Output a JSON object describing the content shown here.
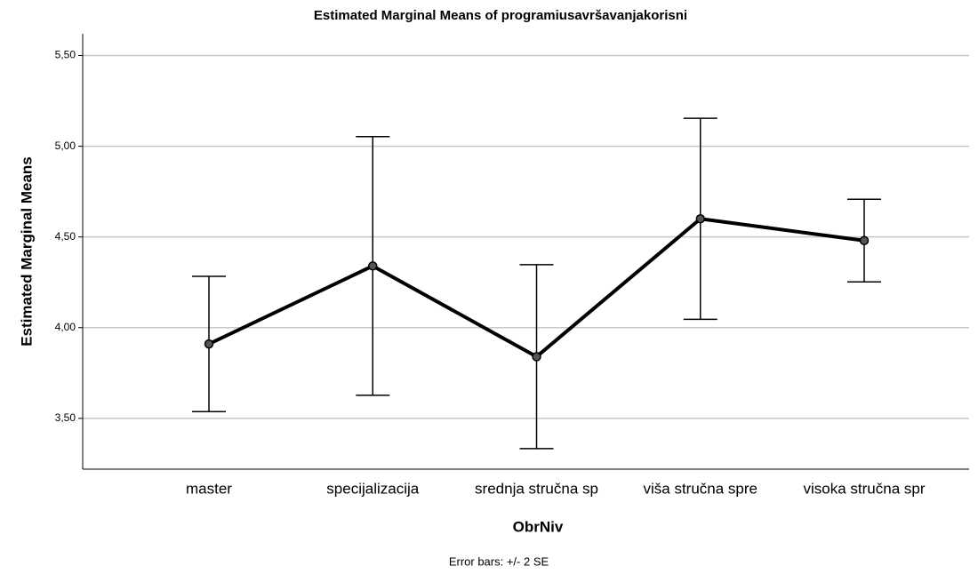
{
  "chart_data": {
    "type": "line",
    "title": "Estimated Marginal Means of programiusavršavanjakorisni",
    "xlabel": "ObrNiv",
    "ylabel": "Estimated Marginal Means",
    "footnote": "Error bars: +/- 2 SE",
    "categories": [
      "master",
      "specijalizacija",
      "srednja stručna sp",
      "viša stručna spre",
      "visoka stručna spr"
    ],
    "series": [
      {
        "name": "programiusavršavanjakorisni",
        "color": "#000000",
        "values": [
          3.91,
          4.34,
          3.84,
          4.6,
          4.48
        ],
        "errors": [
          0.373,
          0.713,
          0.507,
          0.554,
          0.228
        ]
      }
    ],
    "ylim": [
      3.22,
      5.62
    ],
    "yticks": [
      {
        "value": 3.5,
        "label": "3,50"
      },
      {
        "value": 4.0,
        "label": "4,00"
      },
      {
        "value": 4.5,
        "label": "4,50"
      },
      {
        "value": 5.0,
        "label": "5,00"
      },
      {
        "value": 5.5,
        "label": "5,50"
      }
    ],
    "grid": true
  }
}
